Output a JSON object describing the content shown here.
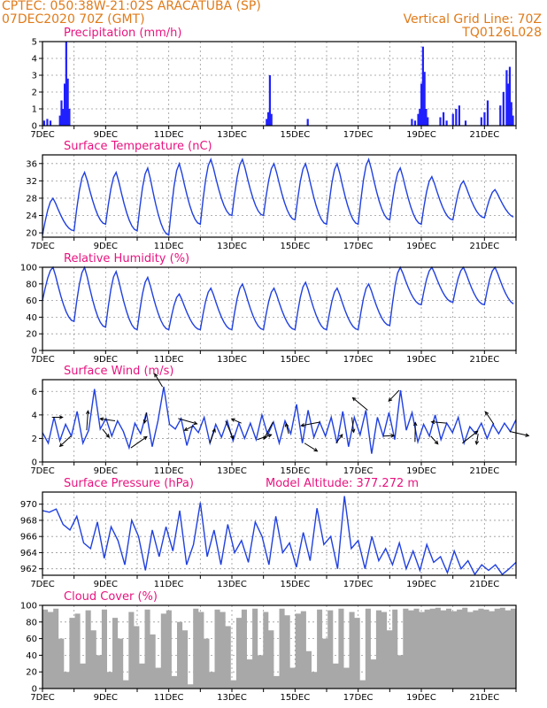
{
  "header": {
    "line1": "CPTEC:   050:38W-21:02S   ARACATUBA (SP)",
    "line2_left": "07DEC2020 70Z (GMT)",
    "line2_right": "Vertical Grid Line: 70Z",
    "line3_right": "TQ0126L028"
  },
  "colors": {
    "header": "#e07b1a",
    "title": "#e8137f",
    "line": "#2040e0",
    "bar": "#2020ff",
    "cloud": "#a8a8a8",
    "grid": "#999999"
  },
  "x_axis": {
    "start_day": 7,
    "end_day": 22,
    "tick_labels": [
      {
        "day": 7,
        "label": "7DEC"
      },
      {
        "day": 9,
        "label": "9DEC"
      },
      {
        "day": 11,
        "label": "11DEC"
      },
      {
        "day": 13,
        "label": "13DEC"
      },
      {
        "day": 15,
        "label": "15DEC"
      },
      {
        "day": 17,
        "label": "17DEC"
      },
      {
        "day": 19,
        "label": "19DEC"
      },
      {
        "day": 21,
        "label": "21DEC"
      }
    ],
    "grid_days": [
      8,
      9,
      10,
      11,
      12,
      13,
      14,
      15,
      16,
      17,
      18,
      19,
      20,
      21
    ]
  },
  "chart_data": [
    {
      "type": "bar",
      "id": "precip",
      "title": "Precipitation (mm/h)",
      "ylim": [
        0,
        5
      ],
      "yticks": [
        0,
        1,
        2,
        3,
        4,
        5
      ],
      "x": [
        7.05,
        7.15,
        7.25,
        7.55,
        7.6,
        7.65,
        7.7,
        7.75,
        7.8,
        7.85,
        14.1,
        14.15,
        14.2,
        14.25,
        15.4,
        18.7,
        18.8,
        18.9,
        18.95,
        19.0,
        19.05,
        19.1,
        19.15,
        19.2,
        19.6,
        19.7,
        19.8,
        20.0,
        20.1,
        20.2,
        20.4,
        20.9,
        21.0,
        21.1,
        21.5,
        21.6,
        21.7,
        21.75,
        21.8,
        21.85,
        21.9
      ],
      "values": [
        0.3,
        0.4,
        0.3,
        0.6,
        1.5,
        1.0,
        2.5,
        5.0,
        2.8,
        1.0,
        0.4,
        0.8,
        3.0,
        0.7,
        0.4,
        0.4,
        0.3,
        0.7,
        1.0,
        2.5,
        4.7,
        3.2,
        1.0,
        0.5,
        0.5,
        0.8,
        0.3,
        0.7,
        1.0,
        1.2,
        0.3,
        0.5,
        0.8,
        1.5,
        1.2,
        2.0,
        3.3,
        2.5,
        3.5,
        1.4,
        0.6
      ]
    },
    {
      "type": "line",
      "id": "temp",
      "title": "Surface Temperature (nC)",
      "ylim": [
        19,
        38
      ],
      "yticks": [
        20,
        24,
        28,
        32,
        36
      ],
      "min_day": [
        19.5,
        20.5,
        22,
        20.5,
        19.5,
        22,
        24,
        24,
        23,
        22,
        22,
        23,
        22,
        23,
        23.5
      ],
      "max_day": [
        28,
        34,
        34,
        35,
        36,
        37,
        37,
        36,
        36,
        36,
        37,
        35,
        33,
        32,
        30
      ]
    },
    {
      "type": "line",
      "id": "rh",
      "title": "Relative Humidity (%)",
      "ylim": [
        0,
        100
      ],
      "yticks": [
        0,
        20,
        40,
        60,
        80,
        100
      ],
      "min_day": [
        60,
        35,
        28,
        25,
        25,
        25,
        25,
        25,
        25,
        25,
        25,
        30,
        55,
        58,
        55
      ],
      "max_day": [
        100,
        100,
        95,
        88,
        68,
        75,
        80,
        75,
        82,
        75,
        80,
        100,
        100,
        100,
        100
      ]
    },
    {
      "type": "line",
      "id": "wind",
      "title": "Surface Wind (m/s)",
      "ylim": [
        0,
        7
      ],
      "yticks": [
        0,
        2,
        4,
        6
      ],
      "values": [
        2.5,
        1.6,
        3.8,
        1.8,
        3.2,
        2.2,
        4.3,
        1.6,
        2.7,
        6.2,
        2.8,
        3.7,
        2.2,
        3.5,
        2.6,
        1.2,
        3.3,
        2.4,
        4.2,
        1.3,
        3.5,
        6.4,
        3.2,
        2.8,
        3.7,
        1.4,
        3.1,
        2.5,
        3.8,
        1.6,
        3.2,
        2.1,
        3.5,
        1.8,
        3.3,
        2.0,
        3.3,
        1.9,
        4.0,
        2.3,
        3.4,
        1.6,
        3.5,
        2.4,
        4.9,
        1.6,
        4.4,
        2.1,
        3.4,
        2.2,
        3.8,
        1.6,
        4.3,
        1.3,
        3.8,
        2.3,
        4.4,
        0.7,
        3.8,
        2.2,
        4.2,
        1.9,
        6.1,
        2.7,
        4.2,
        1.7,
        3.2,
        2.2,
        4.0,
        1.9,
        3.3,
        2.5,
        3.8,
        1.6,
        3.0,
        2.4,
        3.3,
        2.0,
        3.2,
        2.4,
        3.3,
        2.6,
        3.6
      ],
      "arrows_at": [
        7.3,
        7.9,
        8.4,
        8.9,
        9.3,
        9.8,
        10.3,
        10.8,
        11.3,
        11.8,
        12.3,
        12.8,
        13.3,
        13.8,
        14.3,
        14.8,
        15.3,
        15.8,
        16.3,
        16.8,
        17.3,
        17.8,
        18.3,
        18.8,
        19.3,
        19.8,
        20.3,
        20.8,
        21.3,
        21.8
      ]
    },
    {
      "type": "line",
      "id": "press",
      "title": "Surface Pressure (hPa)",
      "annotation": "Model Altitude: 377.272 m",
      "ylim": [
        961.2,
        971.5
      ],
      "yticks": [
        962,
        964,
        966,
        968,
        970
      ],
      "values": [
        969.2,
        969.0,
        969.4,
        967.5,
        966.8,
        968.5,
        965.2,
        964.5,
        967.8,
        963.3,
        967.2,
        965.5,
        962.5,
        968.0,
        966.0,
        961.8,
        966.8,
        963.5,
        967.2,
        964.2,
        969.2,
        962.5,
        965.0,
        970.2,
        963.5,
        966.8,
        962.5,
        967.5,
        964.0,
        965.5,
        962.8,
        967.8,
        966.0,
        962.5,
        968.5,
        964.0,
        965.2,
        962.2,
        966.5,
        963.0,
        969.5,
        965.0,
        966.0,
        962.0,
        971.0,
        964.5,
        965.5,
        962.0,
        966.0,
        963.0,
        964.5,
        962.5,
        965.2,
        962.0,
        964.2,
        961.8,
        965.0,
        962.8,
        963.5,
        961.5,
        964.2,
        962.0,
        963.0,
        961.3,
        962.5,
        961.8,
        962.5,
        961.3,
        962.0,
        962.8
      ]
    },
    {
      "type": "area",
      "id": "cloud",
      "title": "Cloud Cover (%)",
      "ylim": [
        0,
        100
      ],
      "yticks": [
        0,
        20,
        40,
        60,
        80,
        100
      ],
      "values": [
        95,
        92,
        96,
        60,
        20,
        85,
        90,
        30,
        94,
        70,
        40,
        95,
        20,
        85,
        60,
        10,
        92,
        75,
        30,
        95,
        65,
        25,
        90,
        94,
        15,
        80,
        70,
        5,
        96,
        92,
        60,
        20,
        95,
        92,
        75,
        10,
        85,
        95,
        35,
        96,
        40,
        92,
        70,
        15,
        96,
        88,
        25,
        90,
        93,
        45,
        20,
        95,
        60,
        94,
        30,
        96,
        25,
        92,
        85,
        10,
        96,
        35,
        94,
        92,
        70,
        95,
        40,
        96,
        94,
        96,
        92,
        95,
        96,
        97,
        94,
        96,
        93,
        95,
        97,
        92,
        94,
        96,
        95,
        93,
        96,
        97,
        94,
        96
      ]
    }
  ]
}
